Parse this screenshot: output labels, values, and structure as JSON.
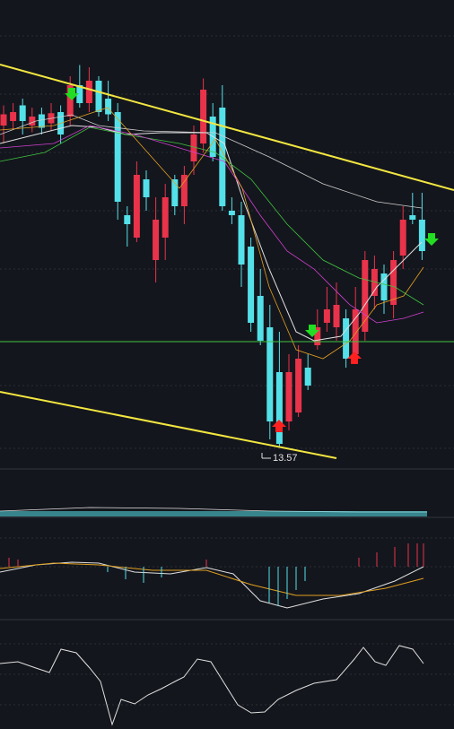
{
  "chart_data": {
    "type": "candlestick",
    "ylim": [
      13.4,
      17.4
    ],
    "up_color": "#e8334a",
    "down_color": "#54e0e8",
    "open": [
      16.44,
      16.48,
      16.62,
      16.44,
      16.54,
      16.46,
      16.56,
      16.52,
      16.8,
      16.64,
      16.84,
      16.68,
      16.56,
      15.64,
      15.44,
      15.96,
      15.24,
      15.44,
      15.96,
      15.72,
      16.12,
      16.28,
      16.52,
      16.6,
      15.68,
      15.64,
      15.36,
      14.92,
      14.64,
      14.24,
      13.8,
      13.88,
      14.28,
      14.48,
      14.68,
      14.64,
      14.72,
      14.4,
      14.6,
      14.92,
      15.12,
      14.84,
      15.28,
      15.64,
      15.6
    ],
    "high": [
      16.62,
      16.64,
      16.68,
      16.6,
      16.6,
      16.64,
      16.62,
      16.88,
      16.98,
      16.96,
      16.88,
      16.84,
      16.64,
      15.72,
      16.12,
      16.04,
      15.8,
      15.92,
      16.0,
      16.08,
      16.44,
      16.86,
      16.64,
      16.8,
      15.8,
      15.76,
      15.44,
      15.16,
      14.84,
      14.6,
      14.4,
      14.48,
      14.4,
      14.8,
      15.0,
      15.04,
      14.8,
      15.0,
      15.32,
      15.28,
      15.2,
      15.32,
      15.72,
      15.84,
      15.84
    ],
    "low": [
      16.28,
      16.4,
      16.36,
      16.38,
      16.36,
      16.39,
      16.28,
      16.44,
      16.6,
      16.56,
      16.52,
      16.48,
      15.6,
      15.36,
      15.4,
      15.68,
      15.04,
      15.24,
      15.64,
      15.56,
      16.0,
      16.2,
      16.12,
      15.68,
      15.56,
      15.0,
      14.6,
      14.48,
      13.64,
      13.57,
      13.72,
      13.84,
      14.08,
      14.44,
      14.6,
      14.52,
      14.28,
      14.32,
      14.52,
      14.8,
      14.76,
      14.72,
      15.16,
      15.56,
      15.24
    ],
    "close": [
      16.54,
      16.56,
      16.48,
      16.52,
      16.42,
      16.55,
      16.36,
      16.8,
      16.64,
      16.84,
      16.56,
      16.54,
      15.76,
      15.56,
      16.0,
      15.8,
      15.6,
      15.8,
      15.72,
      16.0,
      16.36,
      16.76,
      16.16,
      15.72,
      15.64,
      15.2,
      14.68,
      14.52,
      13.8,
      13.6,
      14.24,
      14.36,
      14.12,
      14.64,
      14.8,
      14.84,
      14.36,
      14.8,
      15.24,
      15.16,
      14.88,
      15.24,
      15.6,
      15.6,
      15.32
    ],
    "min_label": "13.57"
  }
}
